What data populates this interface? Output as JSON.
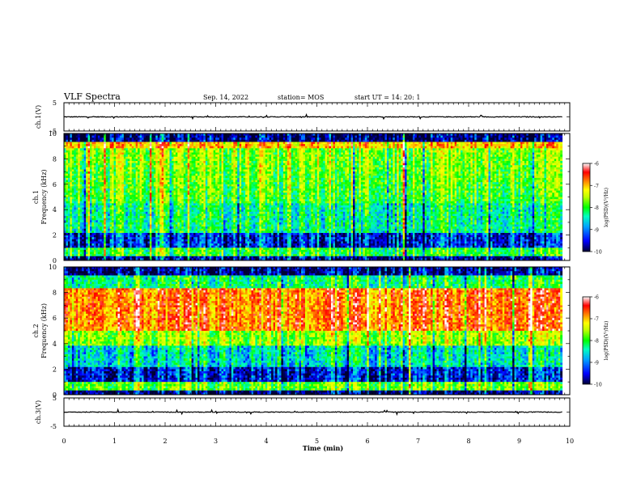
{
  "header": {
    "title": "VLF Spectra",
    "date": "Sep. 14, 2022",
    "station": "station= MOS",
    "start_ut": "start  UT =   14: 20: 1"
  },
  "colors": {
    "spectrogram_colormap": [
      "#000033",
      "#0000ff",
      "#00a0ff",
      "#00ffc0",
      "#00ff00",
      "#c0ff00",
      "#ffff00",
      "#ff8000",
      "#ff0000",
      "#ffffff"
    ],
    "trace": "#000000"
  },
  "chart_data": [
    {
      "type": "line",
      "panel": "ch1-waveform",
      "ylabel": "ch.1(V)",
      "yticks": [
        "5",
        "-5"
      ],
      "ylim": [
        -5,
        5
      ],
      "xlim": [
        0,
        10
      ],
      "note": "flat trace near 0 V"
    },
    {
      "type": "heatmap",
      "panel": "ch1-spectrogram",
      "ylabel": "ch.1 Frequency (kHz)",
      "yticks": [
        "0",
        "2",
        "4",
        "6",
        "8",
        "10"
      ],
      "ylim": [
        0,
        10
      ],
      "xlim": [
        0,
        9.85
      ],
      "colorbar": {
        "label": "log(PSD)(V²/Hz)",
        "ticks": [
          "-6",
          "-7",
          "-8",
          "-9",
          "-10"
        ],
        "range": [
          -10,
          -6
        ]
      }
    },
    {
      "type": "heatmap",
      "panel": "ch2-spectrogram",
      "ylabel": "ch.2 Frequency (kHz)",
      "yticks": [
        "0",
        "2",
        "4",
        "6",
        "8",
        "10"
      ],
      "ylim": [
        0,
        10
      ],
      "xlim": [
        0,
        9.85
      ],
      "colorbar": {
        "label": "log(PSD)(V²/Hz)",
        "ticks": [
          "-6",
          "-7",
          "-8",
          "-9",
          "-10"
        ],
        "range": [
          -10,
          -6
        ]
      }
    },
    {
      "type": "line",
      "panel": "ch3-waveform",
      "ylabel": "ch.3(V)",
      "yticks": [
        "5",
        "-5"
      ],
      "ylim": [
        -5,
        5
      ],
      "xlim": [
        0,
        10
      ],
      "note": "flat trace near 0 V"
    }
  ],
  "xaxis": {
    "label": "Time (min)",
    "ticks": [
      "0",
      "1",
      "2",
      "3",
      "4",
      "5",
      "6",
      "7",
      "8",
      "9",
      "10"
    ]
  }
}
